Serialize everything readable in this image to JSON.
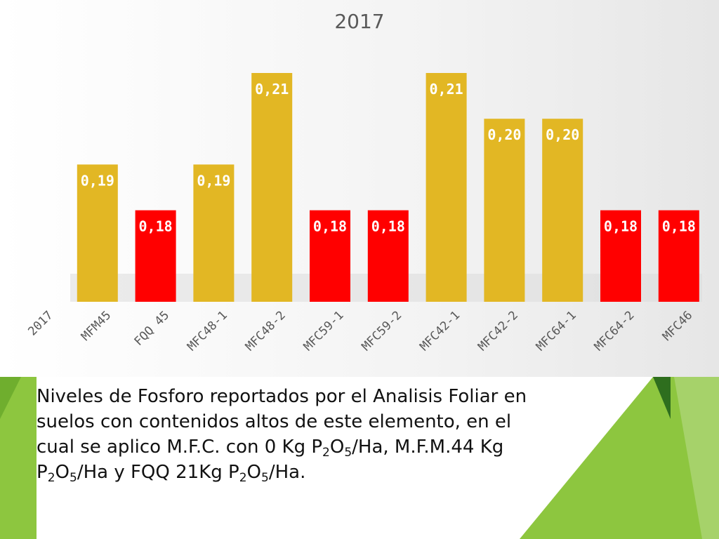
{
  "chart_data": {
    "type": "bar",
    "title": "2017",
    "categories": [
      "2017",
      "MFM45",
      "FQQ 45",
      "MFC48-1",
      "MFC48-2",
      "MFC59-1",
      "MFC59-2",
      "MFC42-1",
      "MFC42-2",
      "MFC64-1",
      "MFC64-2",
      "MFC46"
    ],
    "values": [
      null,
      0.19,
      0.18,
      0.19,
      0.21,
      0.18,
      0.18,
      0.21,
      0.2,
      0.2,
      0.18,
      0.18
    ],
    "data_labels": [
      "",
      "0,19",
      "0,18",
      "0,19",
      "0,21",
      "0,18",
      "0,18",
      "0,21",
      "0,20",
      "0,20",
      "0,18",
      "0,18"
    ],
    "bar_colors": [
      "",
      "#e2b724",
      "#ff0000",
      "#e2b724",
      "#e2b724",
      "#ff0000",
      "#ff0000",
      "#e2b724",
      "#e2b724",
      "#e2b724",
      "#ff0000",
      "#ff0000"
    ],
    "ylim": [
      0.16,
      0.21
    ],
    "grid": false,
    "legend": "none"
  },
  "caption": {
    "line1": "Niveles de Fosforo reportados  por el Analisis Foliar en",
    "line2": "suelos con contenidos altos de este elemento, en el",
    "line3_a": "cual se aplico M.F.C. con 0 Kg P",
    "sub_2": "2",
    "mid_o": "O",
    "sub_5": "5",
    "line3_b": "/Ha, M.F.M.44 Kg",
    "line4_p": "P",
    "line4_b": "/Ha y FQQ 21Kg P",
    "line4_c": "/Ha."
  },
  "colors": {
    "green_light": "#8dc63f",
    "green_dark": "#4a8b2c"
  }
}
